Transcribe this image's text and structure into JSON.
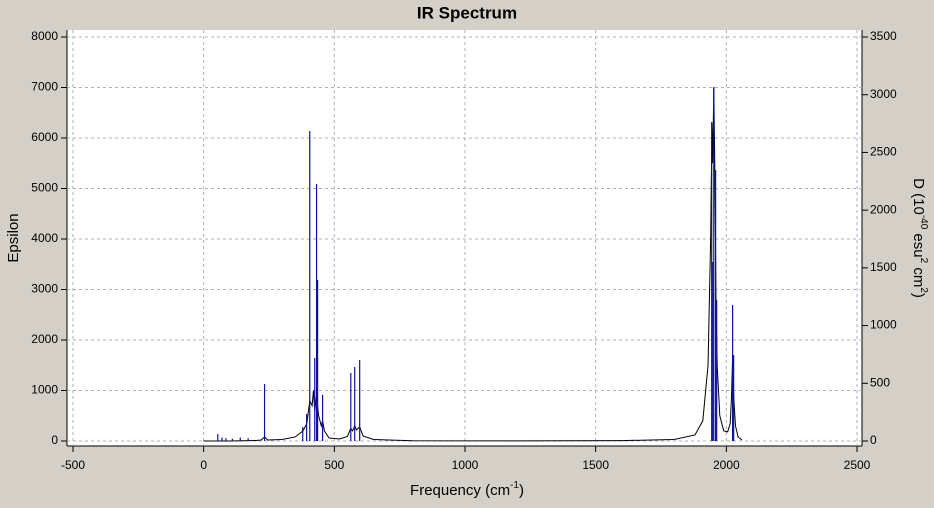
{
  "chart_data": {
    "type": "line",
    "title": "IR Spectrum",
    "xlabel": [
      "Frequency (cm",
      "-1",
      ")"
    ],
    "ylabel": "Epsilon",
    "y2label": [
      "D (10",
      "-40",
      " esu",
      "2",
      " cm",
      "2",
      ")"
    ],
    "xlim": [
      -500,
      2500
    ],
    "xticks": [
      -500,
      0,
      500,
      1000,
      1500,
      2000,
      2500
    ],
    "ylim": [
      0,
      8000
    ],
    "yticks": [
      0,
      1000,
      2000,
      3000,
      4000,
      5000,
      6000,
      7000,
      8000
    ],
    "y2lim": [
      0,
      3500
    ],
    "y2ticks": [
      0,
      500,
      1000,
      1500,
      2000,
      2500,
      3000,
      3500
    ],
    "grid": true,
    "series": [
      {
        "style": "line",
        "color": "#000000",
        "x": [
          0,
          100,
          200,
          220,
          233,
          245,
          300,
          350,
          380,
          395,
          406,
          415,
          420,
          425,
          432,
          440,
          450,
          455,
          462,
          480,
          520,
          550,
          563,
          570,
          578,
          585,
          597,
          610,
          650,
          800,
          1200,
          1600,
          1800,
          1880,
          1910,
          1930,
          1940,
          1945,
          1948,
          1952,
          1956,
          1960,
          1965,
          1975,
          1990,
          2005,
          2015,
          2020,
          2024,
          2028,
          2035,
          2045,
          2060
        ],
        "values": [
          0,
          0,
          10,
          20,
          80,
          20,
          30,
          80,
          200,
          350,
          800,
          700,
          1000,
          600,
          900,
          500,
          300,
          400,
          200,
          60,
          40,
          90,
          250,
          200,
          300,
          220,
          280,
          100,
          30,
          5,
          3,
          8,
          30,
          120,
          400,
          1500,
          4000,
          6300,
          5500,
          7000,
          5400,
          3000,
          1500,
          500,
          200,
          180,
          350,
          900,
          1700,
          900,
          300,
          80,
          20
        ]
      },
      {
        "style": "stick",
        "color": "#10109c",
        "axis": "y2",
        "x": [
          54,
          70,
          85,
          110,
          140,
          170,
          233,
          379,
          394,
          406,
          425,
          432,
          436,
          455,
          563,
          578,
          597,
          1944,
          1948,
          1952,
          1959,
          1963,
          2024,
          2028
        ],
        "values": [
          60,
          30,
          25,
          20,
          30,
          25,
          494,
          121,
          234,
          2686,
          719,
          2227,
          1395,
          400,
          589,
          641,
          702,
          2764,
          1551,
          3067,
          2348,
          1222,
          1178,
          745
        ]
      }
    ]
  }
}
